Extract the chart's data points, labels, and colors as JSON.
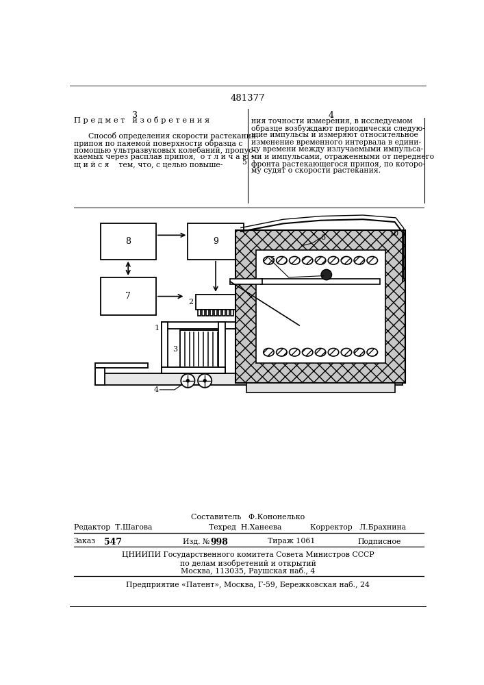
{
  "patent_number": "481377",
  "page_left": "3",
  "page_right": "4",
  "header_left": "П р е д м е т   и з о б р е т е н и я",
  "text_left_lines": [
    "      Способ определения скорости растекания",
    "припоя по паяемой поверхности образца с",
    "помощью ультразвуковых колебаний, пропус-",
    "каемых через расплав припоя,  о т л и ч а ю -",
    "щ и й с я    тем, что, с целью повыше-"
  ],
  "line_number": "5",
  "text_right_lines": [
    "ния точности измерения, в исследуемом",
    "образце возбуждают периодически следую-",
    "щие импульсы и измеряют относительное",
    "изменение временного интервала в едини-",
    "цу времени между излучаемыми импульса-",
    "ми и импульсами, отраженными от переднего",
    "фронта растекающегося припоя, по которо-",
    "му судят о скорости растекания."
  ],
  "footer_sostavitel": "Составитель   Ф.Кононелько",
  "footer_redaktor": "Редактор  Т.Шагова",
  "footer_tehred": "Техред  Н.Ханеева",
  "footer_korrektor": "Корректор   Л.Брахнина",
  "footer_zakaz_label": "Заказ",
  "footer_zakaz_val": "547",
  "footer_izd_label": "Изд. №",
  "footer_izd_val": "998",
  "footer_tirazh": "Тираж 1061",
  "footer_podpisnoe": "Подписное",
  "footer_tsniipii": "ЦНИИПИ Государственного комитета Совета Министров СССР",
  "footer_po_delam": "по делам изобретений и открытий",
  "footer_moskva": "Москва, 113035, Раушская наб., 4",
  "footer_predpriyatie": "Предприятие «Патент», Москва, Г-59, Бережковская наб., 24",
  "bg_color": "#ffffff",
  "text_color": "#000000",
  "hatch_color": "#888888"
}
